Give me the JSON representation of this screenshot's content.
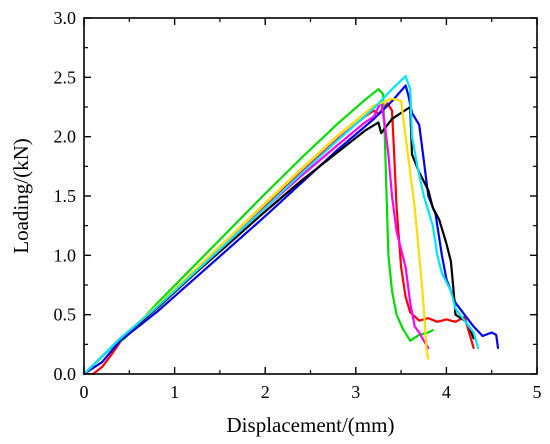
{
  "chart_data": {
    "type": "line",
    "xlabel": "Displacement/(mm)",
    "ylabel": "Loading/(kN)",
    "xlim": [
      0,
      5
    ],
    "ylim": [
      0,
      3.0
    ],
    "x_ticks": [
      0,
      1,
      2,
      3,
      4,
      5
    ],
    "x_tick_labels": [
      "0",
      "1",
      "2",
      "3",
      "4",
      "5"
    ],
    "y_ticks": [
      0,
      0.5,
      1.0,
      1.5,
      2.0,
      2.5,
      3.0
    ],
    "y_tick_labels": [
      "0.0",
      "0.5",
      "1.0",
      "1.5",
      "2.0",
      "2.5",
      "3.0"
    ],
    "grid": false,
    "legend": "none",
    "series": [
      {
        "color": "#ff0000",
        "points": [
          [
            0.1,
            0
          ],
          [
            0.2,
            0.06
          ],
          [
            0.3,
            0.16
          ],
          [
            0.4,
            0.27
          ],
          [
            0.5,
            0.35
          ],
          [
            0.8,
            0.55
          ],
          [
            1.2,
            0.83
          ],
          [
            1.6,
            1.12
          ],
          [
            2.0,
            1.41
          ],
          [
            2.4,
            1.7
          ],
          [
            2.8,
            1.98
          ],
          [
            3.1,
            2.17
          ],
          [
            3.2,
            2.22
          ],
          [
            3.25,
            2.19
          ],
          [
            3.35,
            2.28
          ],
          [
            3.4,
            2.22
          ],
          [
            3.42,
            1.9
          ],
          [
            3.45,
            1.4
          ],
          [
            3.5,
            0.9
          ],
          [
            3.55,
            0.65
          ],
          [
            3.6,
            0.52
          ],
          [
            3.7,
            0.45
          ],
          [
            3.8,
            0.47
          ],
          [
            3.9,
            0.44
          ],
          [
            4.0,
            0.46
          ],
          [
            4.1,
            0.44
          ],
          [
            4.2,
            0.48
          ],
          [
            4.25,
            0.35
          ],
          [
            4.3,
            0.22
          ]
        ]
      },
      {
        "color": "#00dd00",
        "points": [
          [
            0,
            0
          ],
          [
            0.3,
            0.22
          ],
          [
            0.45,
            0.3
          ],
          [
            0.8,
            0.59
          ],
          [
            1.2,
            0.9
          ],
          [
            1.6,
            1.21
          ],
          [
            2.0,
            1.52
          ],
          [
            2.4,
            1.82
          ],
          [
            2.8,
            2.11
          ],
          [
            3.1,
            2.31
          ],
          [
            3.25,
            2.4
          ],
          [
            3.3,
            2.36
          ],
          [
            3.32,
            2.0
          ],
          [
            3.34,
            1.5
          ],
          [
            3.36,
            1.0
          ],
          [
            3.4,
            0.7
          ],
          [
            3.45,
            0.5
          ],
          [
            3.52,
            0.38
          ],
          [
            3.6,
            0.28
          ],
          [
            3.7,
            0.33
          ],
          [
            3.8,
            0.35
          ],
          [
            3.85,
            0.37
          ]
        ]
      },
      {
        "color": "#0000ee",
        "points": [
          [
            0,
            0
          ],
          [
            0.2,
            0.1
          ],
          [
            0.4,
            0.28
          ],
          [
            0.8,
            0.52
          ],
          [
            1.2,
            0.79
          ],
          [
            1.6,
            1.06
          ],
          [
            2.0,
            1.33
          ],
          [
            2.4,
            1.61
          ],
          [
            2.8,
            1.89
          ],
          [
            3.2,
            2.15
          ],
          [
            3.4,
            2.3
          ],
          [
            3.55,
            2.43
          ],
          [
            3.58,
            2.35
          ],
          [
            3.62,
            2.2
          ],
          [
            3.7,
            2.1
          ],
          [
            3.75,
            1.8
          ],
          [
            3.8,
            1.5
          ],
          [
            3.88,
            1.35
          ],
          [
            3.95,
            1.0
          ],
          [
            4.0,
            0.8
          ],
          [
            4.1,
            0.6
          ],
          [
            4.2,
            0.5
          ],
          [
            4.3,
            0.4
          ],
          [
            4.4,
            0.32
          ],
          [
            4.5,
            0.35
          ],
          [
            4.55,
            0.33
          ],
          [
            4.57,
            0.22
          ]
        ]
      },
      {
        "color": "#000000",
        "points": [
          [
            0,
            0
          ],
          [
            0.4,
            0.3
          ],
          [
            0.8,
            0.55
          ],
          [
            1.2,
            0.83
          ],
          [
            1.6,
            1.1
          ],
          [
            2.0,
            1.37
          ],
          [
            2.4,
            1.63
          ],
          [
            2.8,
            1.87
          ],
          [
            3.1,
            2.05
          ],
          [
            3.25,
            2.12
          ],
          [
            3.28,
            2.03
          ],
          [
            3.4,
            2.15
          ],
          [
            3.5,
            2.2
          ],
          [
            3.6,
            2.25
          ],
          [
            3.62,
            1.85
          ],
          [
            3.7,
            1.7
          ],
          [
            3.8,
            1.55
          ],
          [
            3.85,
            1.4
          ],
          [
            3.92,
            1.3
          ],
          [
            4.0,
            1.1
          ],
          [
            4.05,
            0.95
          ],
          [
            4.08,
            0.7
          ],
          [
            4.1,
            0.5
          ],
          [
            4.2,
            0.45
          ],
          [
            4.25,
            0.4
          ],
          [
            4.3,
            0.3
          ]
        ]
      },
      {
        "color": "#ff00ff",
        "points": [
          [
            0,
            0
          ],
          [
            0.4,
            0.3
          ],
          [
            0.8,
            0.56
          ],
          [
            1.2,
            0.84
          ],
          [
            1.6,
            1.12
          ],
          [
            2.0,
            1.4
          ],
          [
            2.4,
            1.67
          ],
          [
            2.8,
            1.93
          ],
          [
            3.1,
            2.12
          ],
          [
            3.2,
            2.17
          ],
          [
            3.28,
            2.3
          ],
          [
            3.32,
            2.1
          ],
          [
            3.36,
            1.85
          ],
          [
            3.4,
            1.5
          ],
          [
            3.45,
            1.2
          ],
          [
            3.55,
            0.9
          ],
          [
            3.6,
            0.6
          ],
          [
            3.65,
            0.4
          ],
          [
            3.7,
            0.35
          ],
          [
            3.75,
            0.28
          ],
          [
            3.8,
            0.22
          ]
        ]
      },
      {
        "color": "#ffdd00",
        "points": [
          [
            0,
            0
          ],
          [
            0.4,
            0.3
          ],
          [
            0.8,
            0.57
          ],
          [
            1.2,
            0.86
          ],
          [
            1.6,
            1.15
          ],
          [
            2.0,
            1.44
          ],
          [
            2.4,
            1.73
          ],
          [
            2.8,
            2.01
          ],
          [
            3.2,
            2.26
          ],
          [
            3.4,
            2.32
          ],
          [
            3.5,
            2.3
          ],
          [
            3.55,
            2.0
          ],
          [
            3.6,
            1.7
          ],
          [
            3.65,
            1.4
          ],
          [
            3.7,
            1.0
          ],
          [
            3.73,
            0.75
          ],
          [
            3.76,
            0.45
          ],
          [
            3.78,
            0.2
          ],
          [
            3.8,
            0.13
          ]
        ]
      },
      {
        "color": "#00e5ff",
        "points": [
          [
            0,
            0
          ],
          [
            0.4,
            0.3
          ],
          [
            0.8,
            0.56
          ],
          [
            1.2,
            0.84
          ],
          [
            1.6,
            1.12
          ],
          [
            2.0,
            1.4
          ],
          [
            2.4,
            1.69
          ],
          [
            2.8,
            1.97
          ],
          [
            3.2,
            2.24
          ],
          [
            3.4,
            2.4
          ],
          [
            3.55,
            2.51
          ],
          [
            3.6,
            2.4
          ],
          [
            3.62,
            2.0
          ],
          [
            3.68,
            1.75
          ],
          [
            3.75,
            1.5
          ],
          [
            3.85,
            1.25
          ],
          [
            3.9,
            1.0
          ],
          [
            3.95,
            0.85
          ],
          [
            4.05,
            0.7
          ],
          [
            4.1,
            0.55
          ],
          [
            4.2,
            0.45
          ],
          [
            4.3,
            0.35
          ],
          [
            4.35,
            0.22
          ]
        ]
      }
    ]
  }
}
